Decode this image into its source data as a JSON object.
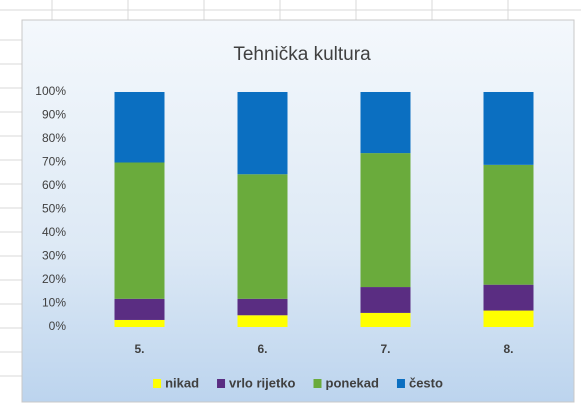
{
  "chart_data": {
    "type": "stacked_bar_100",
    "title": "Tehnička kultura",
    "categories": [
      "5.",
      "6.",
      "7.",
      "8."
    ],
    "series": [
      {
        "name": "nikad",
        "color": "#ffff00",
        "values": [
          3,
          5,
          6,
          7
        ]
      },
      {
        "name": "vrlo rijetko",
        "color": "#5a2d82",
        "values": [
          9,
          7,
          11,
          11
        ]
      },
      {
        "name": "ponekad",
        "color": "#6aab3c",
        "values": [
          58,
          53,
          57,
          51
        ]
      },
      {
        "name": "često",
        "color": "#0b6fc1",
        "values": [
          30,
          35,
          26,
          31
        ]
      }
    ],
    "ylim": [
      0,
      100
    ],
    "yticks": [
      {
        "value": 0,
        "label": "0%"
      },
      {
        "value": 10,
        "label": "10%"
      },
      {
        "value": 20,
        "label": "20%"
      },
      {
        "value": 30,
        "label": "30%"
      },
      {
        "value": 40,
        "label": "40%"
      },
      {
        "value": 50,
        "label": "50%"
      },
      {
        "value": 60,
        "label": "60%"
      },
      {
        "value": 70,
        "label": "70%"
      },
      {
        "value": 80,
        "label": "80%"
      },
      {
        "value": 90,
        "label": "90%"
      },
      {
        "value": 100,
        "label": "100%"
      }
    ],
    "grid": false,
    "legend": "bottom"
  }
}
